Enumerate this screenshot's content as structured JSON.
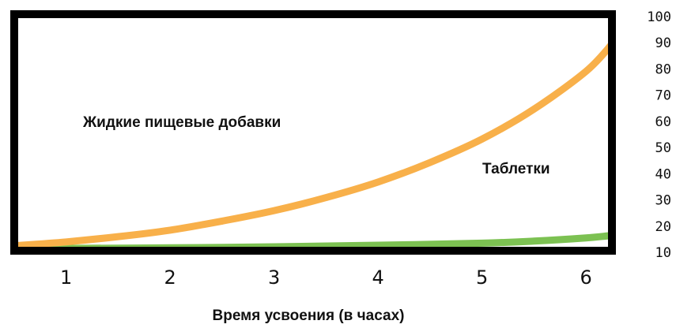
{
  "chart_data": {
    "type": "line",
    "xlabel": "Время усвоения (в часах)",
    "ylabel": "",
    "x_ticks": [
      "1",
      "2",
      "3",
      "4",
      "5",
      "6"
    ],
    "y_ticks": [
      "10",
      "20",
      "30",
      "40",
      "50",
      "60",
      "70",
      "80",
      "90",
      "100"
    ],
    "xlim": [
      0.5,
      6.25
    ],
    "ylim": [
      10,
      100
    ],
    "grid": false,
    "series": [
      {
        "name": "Жидкие пищевые добавки",
        "color": "#F8B04A",
        "x": [
          0.5,
          1,
          1.5,
          2,
          2.5,
          3,
          3.5,
          4,
          4.5,
          5,
          5.5,
          6,
          6.25
        ],
        "y": [
          11,
          12.5,
          14.5,
          17,
          20.5,
          24.5,
          29.5,
          35.5,
          43,
          52,
          63.5,
          78,
          88.5
        ]
      },
      {
        "name": "Таблетки",
        "color": "#7CC152",
        "x": [
          0.5,
          1,
          2,
          3,
          4,
          5,
          5.5,
          6,
          6.25
        ],
        "y": [
          10,
          10,
          10.2,
          10.6,
          11.2,
          12,
          12.8,
          14,
          15
        ]
      }
    ],
    "annotations": [
      {
        "text": "Жидкие пищевые добавки",
        "series": 0
      },
      {
        "text": "Таблетки",
        "series": 1
      }
    ]
  }
}
